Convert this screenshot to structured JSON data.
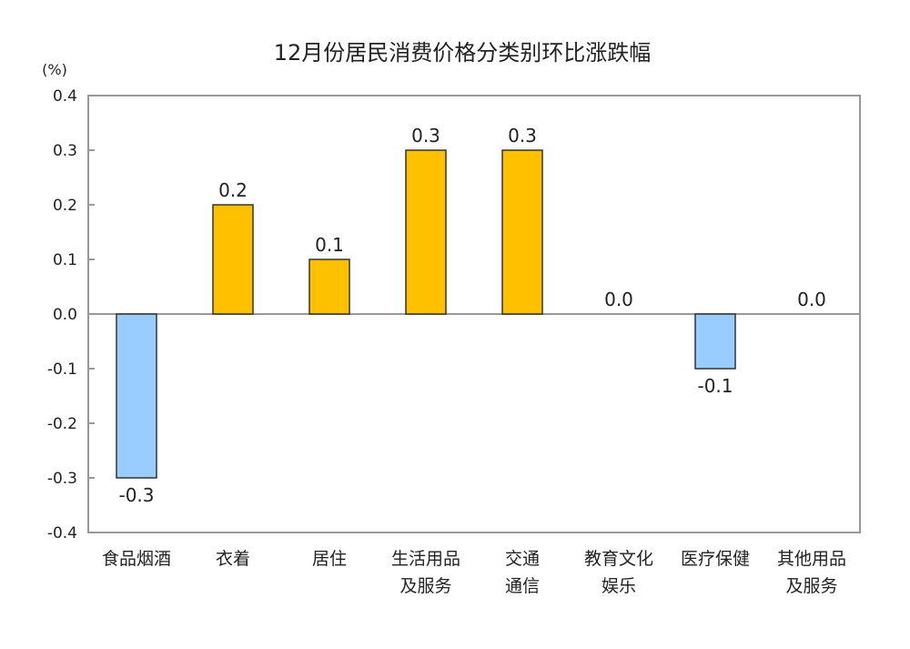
{
  "chart_data": {
    "type": "bar",
    "title": "12月份居民消费价格分类别环比涨跌幅",
    "ylabel": "(%)",
    "xlabel": "",
    "ylim": [
      -0.4,
      0.4
    ],
    "yticks": [
      "0.4",
      "0.3",
      "0.2",
      "0.1",
      "0.0",
      "-0.1",
      "-0.2",
      "-0.3",
      "-0.4"
    ],
    "ytick_values": [
      0.4,
      0.3,
      0.2,
      0.1,
      0.0,
      -0.1,
      -0.2,
      -0.3,
      -0.4
    ],
    "categories": [
      [
        "食品烟酒"
      ],
      [
        "衣着"
      ],
      [
        "居住"
      ],
      [
        "生活用品",
        "及服务"
      ],
      [
        "交通",
        "通信"
      ],
      [
        "教育文化",
        "娱乐"
      ],
      [
        "医疗保健"
      ],
      [
        "其他用品",
        "及服务"
      ]
    ],
    "values": [
      -0.3,
      0.2,
      0.1,
      0.3,
      0.3,
      0.0,
      -0.1,
      0.0
    ],
    "data_labels": [
      "-0.3",
      "0.2",
      "0.1",
      "0.3",
      "0.3",
      "0.0",
      "-0.1",
      "0.0"
    ],
    "grid": false,
    "legend": "none",
    "colors": {
      "positive": "#ffc000",
      "negative": "#99ccff",
      "outline": "#333333",
      "frame": "#999999"
    }
  }
}
